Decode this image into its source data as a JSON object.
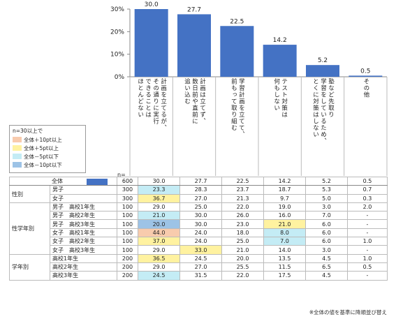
{
  "chart_data": {
    "type": "bar",
    "y_ticks": [
      "30%",
      "20%",
      "10%",
      "0%"
    ],
    "ylim": [
      0,
      30
    ],
    "bar_color": "#4472c4",
    "categories": [
      "計画を立てるが、\nその通りに実行\nできることは\nほとんどない",
      "計画は立てず、\n数日前や直前に\n追い込む",
      "学習計画を立てて、\n前もって取り組む",
      "テスト対策は\n何もしない",
      "塾など先取り\n学習をしているため、\nとくに対策はしない",
      "その他"
    ],
    "values": [
      30.0,
      27.7,
      22.5,
      14.2,
      5.2,
      0.5
    ],
    "value_labels": [
      "30.0",
      "27.7",
      "22.5",
      "14.2",
      "5.2",
      "0.5"
    ]
  },
  "legend": {
    "title": "n=30以上で",
    "items": [
      {
        "label": "全体＋10pt以上",
        "color": "#f8cbad"
      },
      {
        "label": "全体＋5pt以上",
        "color": "#fff2a0"
      },
      {
        "label": "全体－5pt以下",
        "color": "#c4ecf5"
      },
      {
        "label": "全体－10pt以下",
        "color": "#9dc3e6"
      }
    ]
  },
  "n_label": "n=",
  "table": {
    "rows": [
      {
        "group": "",
        "sub": "全体",
        "n": "600",
        "cells": [
          [
            "30.0",
            ""
          ],
          [
            "27.7",
            ""
          ],
          [
            "22.5",
            ""
          ],
          [
            "14.2",
            ""
          ],
          [
            "5.2",
            ""
          ],
          [
            "0.5",
            ""
          ]
        ],
        "overall": true
      },
      {
        "group": "性別",
        "span": 2,
        "sub": "男子",
        "n": "300",
        "cells": [
          [
            "23.3",
            "cyan"
          ],
          [
            "28.3",
            ""
          ],
          [
            "23.7",
            ""
          ],
          [
            "18.7",
            ""
          ],
          [
            "5.3",
            ""
          ],
          [
            "0.7",
            ""
          ]
        ]
      },
      {
        "sub": "女子",
        "n": "300",
        "cells": [
          [
            "36.7",
            "yellow"
          ],
          [
            "27.0",
            ""
          ],
          [
            "21.3",
            ""
          ],
          [
            "9.7",
            ""
          ],
          [
            "5.0",
            ""
          ],
          [
            "0.3",
            ""
          ]
        ]
      },
      {
        "group": "性学年別",
        "span": 6,
        "sub": "男子　高校1年生",
        "n": "100",
        "cells": [
          [
            "29.0",
            ""
          ],
          [
            "25.0",
            ""
          ],
          [
            "22.0",
            ""
          ],
          [
            "19.0",
            ""
          ],
          [
            "3.0",
            ""
          ],
          [
            "2.0",
            ""
          ]
        ]
      },
      {
        "sub": "男子　高校2年生",
        "n": "100",
        "cells": [
          [
            "21.0",
            "cyan"
          ],
          [
            "30.0",
            ""
          ],
          [
            "26.0",
            ""
          ],
          [
            "16.0",
            ""
          ],
          [
            "7.0",
            ""
          ],
          [
            "-",
            ""
          ]
        ]
      },
      {
        "sub": "男子　高校3年生",
        "n": "100",
        "cells": [
          [
            "20.0",
            "blue"
          ],
          [
            "30.0",
            ""
          ],
          [
            "23.0",
            ""
          ],
          [
            "21.0",
            "yellow"
          ],
          [
            "6.0",
            ""
          ],
          [
            "-",
            ""
          ]
        ]
      },
      {
        "sub": "女子　高校1年生",
        "n": "100",
        "cells": [
          [
            "44.0",
            "orange"
          ],
          [
            "24.0",
            ""
          ],
          [
            "18.0",
            ""
          ],
          [
            "8.0",
            "cyan"
          ],
          [
            "6.0",
            ""
          ],
          [
            "-",
            ""
          ]
        ]
      },
      {
        "sub": "女子　高校2年生",
        "n": "100",
        "cells": [
          [
            "37.0",
            "yellow"
          ],
          [
            "24.0",
            ""
          ],
          [
            "25.0",
            ""
          ],
          [
            "7.0",
            "cyan"
          ],
          [
            "6.0",
            ""
          ],
          [
            "1.0",
            ""
          ]
        ]
      },
      {
        "sub": "女子　高校3年生",
        "n": "100",
        "cells": [
          [
            "29.0",
            ""
          ],
          [
            "33.0",
            "yellow"
          ],
          [
            "21.0",
            ""
          ],
          [
            "14.0",
            ""
          ],
          [
            "3.0",
            ""
          ],
          [
            "-",
            ""
          ]
        ]
      },
      {
        "group": "学年別",
        "span": 3,
        "sub": "高校1年生",
        "n": "200",
        "cells": [
          [
            "36.5",
            "yellow"
          ],
          [
            "24.5",
            ""
          ],
          [
            "20.0",
            ""
          ],
          [
            "13.5",
            ""
          ],
          [
            "4.5",
            ""
          ],
          [
            "1.0",
            ""
          ]
        ]
      },
      {
        "sub": "高校2年生",
        "n": "200",
        "cells": [
          [
            "29.0",
            ""
          ],
          [
            "27.0",
            ""
          ],
          [
            "25.5",
            ""
          ],
          [
            "11.5",
            ""
          ],
          [
            "6.5",
            ""
          ],
          [
            "0.5",
            ""
          ]
        ]
      },
      {
        "sub": "高校3年生",
        "n": "200",
        "cells": [
          [
            "24.5",
            "cyan"
          ],
          [
            "31.5",
            ""
          ],
          [
            "22.0",
            ""
          ],
          [
            "17.5",
            ""
          ],
          [
            "4.5",
            ""
          ],
          [
            "-",
            ""
          ]
        ]
      }
    ]
  },
  "footnote": "※全体の値を基準に降順並び替え"
}
